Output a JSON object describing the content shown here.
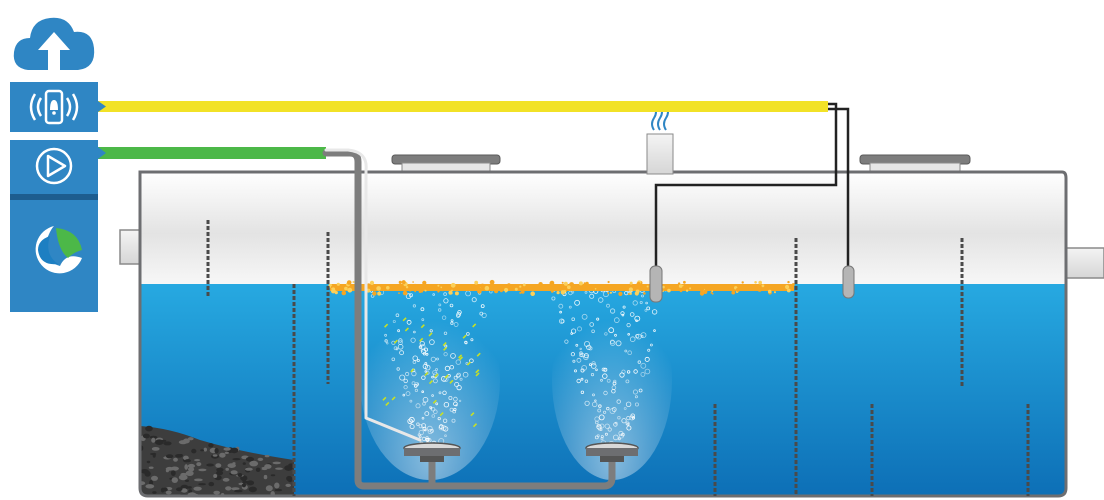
{
  "diagram": {
    "colors": {
      "panel": "#2f86c4",
      "signal_cable": "#f2e227",
      "air_cable": "#4cb848",
      "water_top": "#27a9e1",
      "water_bottom": "#0d6fb6",
      "tank_air": "#ebebeb",
      "tank_outline": "#6d6e71",
      "sludge_layer": "#f5a623",
      "gravel": "#3d3d3d"
    },
    "icons": [
      "cloud-upload-icon",
      "phone-alarm-icon",
      "play-icon",
      "brand-logo-icon"
    ],
    "components": [
      "tank",
      "inlet-pipe",
      "outlet-pipe",
      "manhole-cover-left",
      "manhole-cover-right",
      "vent-stack",
      "air-supply-pipe",
      "aerator-left",
      "aerator-right",
      "level-sensor-left",
      "level-sensor-right",
      "signal-cable",
      "air-cable"
    ]
  }
}
